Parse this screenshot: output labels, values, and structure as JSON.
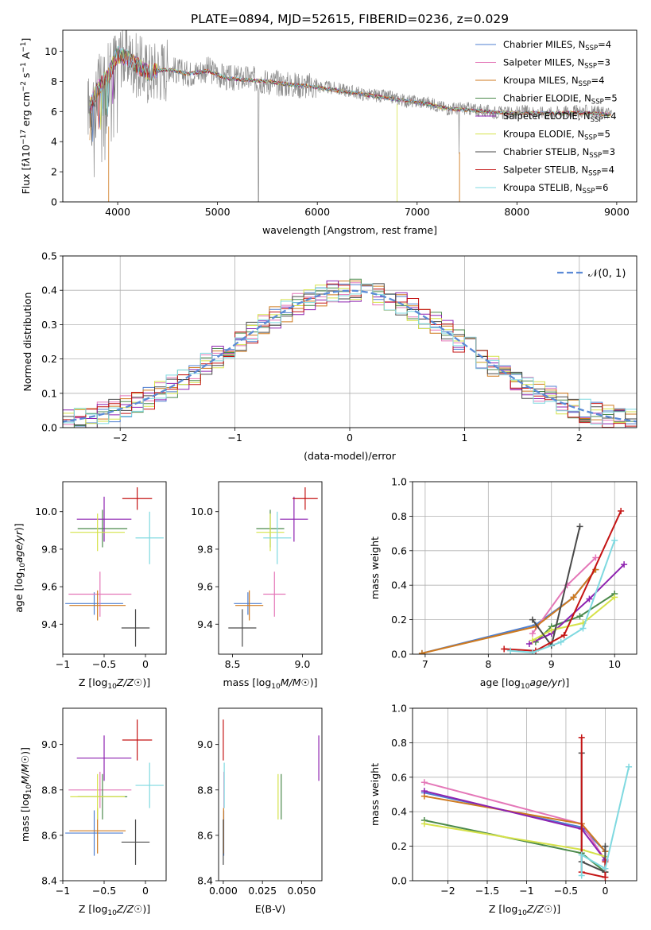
{
  "figure": {
    "title": "PLATE=0894, MJD=52615, FIBERID=0236, z=0.029"
  },
  "colors": {
    "Chabrier MILES": "#4f7fd0",
    "Salpeter MILES": "#e477b8",
    "Kroupa MILES": "#cf7a1f",
    "Chabrier ELODIE": "#4c8a4c",
    "Salpeter ELODIE": "#8e22b0",
    "Kroupa ELODIE": "#d6e24a",
    "Chabrier STELIB": "#4a4a4a",
    "Salpeter STELIB": "#c41414",
    "Kroupa STELIB": "#7fd9e0"
  },
  "chart_data": [
    {
      "id": "spectrum",
      "type": "line",
      "xlabel": "wavelength [Angstrom, rest frame]",
      "ylabel": "Flux [f_λ10^-17 erg cm^-2 s^-1 A^-1]",
      "xlim": [
        3450,
        9200
      ],
      "ylim": [
        0,
        11.4
      ],
      "xticks": [
        4000,
        5000,
        6000,
        7000,
        8000,
        9000
      ],
      "yticks": [
        0,
        2,
        4,
        6,
        8,
        10
      ],
      "legend_position": "top-right",
      "data_series": {
        "name": "",
        "x": [
          3700,
          3800,
          3900,
          4000,
          4100,
          4200,
          4300,
          4500,
          4700,
          4900,
          5100,
          5300,
          5500,
          5700,
          5900,
          6100,
          6300,
          6500,
          6700,
          6900,
          7100,
          7300,
          7500,
          7700,
          7900,
          8100,
          8300,
          8500,
          8700,
          8900
        ],
        "y": [
          6.3,
          7.6,
          8.5,
          9.9,
          9.6,
          9.0,
          8.6,
          8.9,
          8.5,
          8.8,
          8.2,
          8.2,
          8.0,
          7.8,
          7.7,
          7.6,
          7.4,
          7.1,
          7.0,
          6.7,
          6.6,
          6.2,
          6.2,
          6.0,
          5.9,
          6.0,
          5.9,
          6.0,
          6.0,
          5.9
        ]
      },
      "model_x": [
        3700,
        3800,
        3900,
        4000,
        4100,
        4200,
        4300,
        4500,
        4700,
        4900,
        5100,
        5300,
        5500,
        5700,
        5900,
        6100,
        6300,
        6500,
        6700,
        6900,
        7100,
        7300,
        7500,
        7700,
        7900,
        8100,
        8300,
        8500,
        8700,
        8900
      ],
      "model_y": [
        6.0,
        7.5,
        8.3,
        9.8,
        9.5,
        9.0,
        8.6,
        8.8,
        8.5,
        8.7,
        8.2,
        8.1,
        8.0,
        7.8,
        7.7,
        7.5,
        7.3,
        7.1,
        6.9,
        6.7,
        6.5,
        6.2,
        6.1,
        6.0,
        5.9,
        5.9,
        5.9,
        5.9,
        5.9,
        5.8
      ],
      "legend": [
        {
          "name": "Chabrier MILES",
          "label": "Chabrier MILES, N",
          "sub": "SSP",
          "tail": "=4"
        },
        {
          "name": "Salpeter MILES",
          "label": "Salpeter MILES, N",
          "sub": "SSP",
          "tail": "=3"
        },
        {
          "name": "Kroupa MILES",
          "label": "Kroupa MILES, N",
          "sub": "SSP",
          "tail": "=4"
        },
        {
          "name": "Chabrier ELODIE",
          "label": "Chabrier ELODIE, N",
          "sub": "SSP",
          "tail": "=5"
        },
        {
          "name": "Salpeter ELODIE",
          "label": "Salpeter ELODIE, N",
          "sub": "SSP",
          "tail": "=4"
        },
        {
          "name": "Kroupa ELODIE",
          "label": "Kroupa ELODIE, N",
          "sub": "SSP",
          "tail": "=5"
        },
        {
          "name": "Chabrier STELIB",
          "label": "Chabrier STELIB, N",
          "sub": "SSP",
          "tail": "=3"
        },
        {
          "name": "Salpeter STELIB",
          "label": "Salpeter STELIB, N",
          "sub": "SSP",
          "tail": "=4"
        },
        {
          "name": "Kroupa STELIB",
          "label": "Kroupa STELIB, N",
          "sub": "SSP",
          "tail": "=6"
        }
      ]
    },
    {
      "id": "residuals",
      "type": "line",
      "xlabel": "(data-model)/error",
      "ylabel": "Normed distribution",
      "xlim": [
        -2.5,
        2.5
      ],
      "ylim": [
        0,
        0.5
      ],
      "xticks": [
        -2,
        -1,
        0,
        1,
        2
      ],
      "yticks": [
        0.0,
        0.1,
        0.2,
        0.3,
        0.4,
        0.5
      ],
      "grid": true,
      "legend_position": "top-right",
      "gaussian_label": "𝒩(0, 1)",
      "bin_width": 0.1
    },
    {
      "id": "age_vs_Z",
      "type": "scatter",
      "xlabel": "Z [log10(Z/Z☉)]",
      "ylabel": "age  [log10(age/yr)]",
      "xlim": [
        -1.0,
        0.25
      ],
      "ylim": [
        9.24,
        10.16
      ],
      "xticks": [
        -1.0,
        -0.5,
        0.0
      ],
      "yticks": [
        9.4,
        9.6,
        9.8,
        10.0
      ],
      "points": [
        {
          "name": "Chabrier MILES",
          "x": -0.62,
          "y": 9.51,
          "xerr": 0.35,
          "yerr": 0.06
        },
        {
          "name": "Salpeter MILES",
          "x": -0.55,
          "y": 9.56,
          "xerr": 0.38,
          "yerr": 0.12
        },
        {
          "name": "Kroupa MILES",
          "x": -0.58,
          "y": 9.5,
          "xerr": 0.34,
          "yerr": 0.08
        },
        {
          "name": "Chabrier ELODIE",
          "x": -0.52,
          "y": 9.91,
          "xerr": 0.3,
          "yerr": 0.1
        },
        {
          "name": "Salpeter ELODIE",
          "x": -0.5,
          "y": 9.96,
          "xerr": 0.33,
          "yerr": 0.12
        },
        {
          "name": "Kroupa ELODIE",
          "x": -0.58,
          "y": 9.89,
          "xerr": 0.33,
          "yerr": 0.1
        },
        {
          "name": "Chabrier STELIB",
          "x": -0.12,
          "y": 9.38,
          "xerr": 0.17,
          "yerr": 0.1
        },
        {
          "name": "Salpeter STELIB",
          "x": -0.1,
          "y": 10.07,
          "xerr": 0.18,
          "yerr": 0.06
        },
        {
          "name": "Kroupa STELIB",
          "x": 0.05,
          "y": 9.86,
          "xerr": 0.17,
          "yerr": 0.14
        }
      ]
    },
    {
      "id": "age_vs_mass",
      "type": "scatter",
      "xlabel": "mass [log10(M/M☉)]",
      "ylabel": "",
      "xlim": [
        8.4,
        9.14
      ],
      "ylim": [
        9.24,
        10.16
      ],
      "xticks": [
        8.5,
        9.0
      ],
      "yticks": [
        9.4,
        9.6,
        9.8,
        10.0
      ],
      "points": [
        {
          "name": "Chabrier MILES",
          "x": 8.61,
          "y": 9.51,
          "xerr": 0.1,
          "yerr": 0.06
        },
        {
          "name": "Salpeter MILES",
          "x": 8.8,
          "y": 9.56,
          "xerr": 0.08,
          "yerr": 0.12
        },
        {
          "name": "Kroupa MILES",
          "x": 8.62,
          "y": 9.5,
          "xerr": 0.1,
          "yerr": 0.08
        },
        {
          "name": "Chabrier ELODIE",
          "x": 8.77,
          "y": 9.91,
          "xerr": 0.1,
          "yerr": 0.1
        },
        {
          "name": "Salpeter ELODIE",
          "x": 8.94,
          "y": 9.96,
          "xerr": 0.1,
          "yerr": 0.12
        },
        {
          "name": "Kroupa ELODIE",
          "x": 8.77,
          "y": 9.89,
          "xerr": 0.1,
          "yerr": 0.1
        },
        {
          "name": "Chabrier STELIB",
          "x": 8.57,
          "y": 9.38,
          "xerr": 0.1,
          "yerr": 0.1
        },
        {
          "name": "Salpeter STELIB",
          "x": 9.02,
          "y": 10.07,
          "xerr": 0.09,
          "yerr": 0.06
        },
        {
          "name": "Kroupa STELIB",
          "x": 8.82,
          "y": 9.86,
          "xerr": 0.1,
          "yerr": 0.14
        }
      ]
    },
    {
      "id": "weight_vs_age",
      "type": "line",
      "xlabel": "age  [log10(age/yr)]",
      "ylabel": "mass weight",
      "xlim": [
        6.8,
        10.35
      ],
      "ylim": [
        0,
        1.0
      ],
      "xticks": [
        7,
        8,
        9,
        10
      ],
      "yticks": [
        0.0,
        0.2,
        0.4,
        0.6,
        0.8,
        1.0
      ],
      "grid": true,
      "series": [
        {
          "name": "Chabrier MILES",
          "x": [
            6.95,
            8.75,
            9.35,
            9.7
          ],
          "y": [
            0.005,
            0.17,
            0.33,
            0.49
          ]
        },
        {
          "name": "Salpeter MILES",
          "x": [
            8.7,
            9.25,
            9.7
          ],
          "y": [
            0.12,
            0.4,
            0.56
          ]
        },
        {
          "name": "Kroupa MILES",
          "x": [
            6.95,
            8.75,
            9.35,
            9.7
          ],
          "y": [
            0.005,
            0.16,
            0.33,
            0.49
          ]
        },
        {
          "name": "Chabrier ELODIE",
          "x": [
            8.75,
            9.0,
            9.45,
            10.0
          ],
          "y": [
            0.07,
            0.16,
            0.22,
            0.35
          ]
        },
        {
          "name": "Salpeter ELODIE",
          "x": [
            8.65,
            9.0,
            9.6,
            10.15
          ],
          "y": [
            0.06,
            0.12,
            0.32,
            0.52
          ]
        },
        {
          "name": "Kroupa ELODIE",
          "x": [
            8.7,
            9.0,
            9.5,
            10.0
          ],
          "y": [
            0.08,
            0.14,
            0.18,
            0.33
          ]
        },
        {
          "name": "Chabrier STELIB",
          "x": [
            8.7,
            9.0,
            9.45
          ],
          "y": [
            0.2,
            0.05,
            0.74
          ]
        },
        {
          "name": "Salpeter STELIB",
          "x": [
            8.25,
            8.75,
            9.2,
            10.1
          ],
          "y": [
            0.03,
            0.02,
            0.11,
            0.83
          ]
        },
        {
          "name": "Kroupa STELIB",
          "x": [
            8.35,
            8.7,
            9.15,
            9.5,
            10.0
          ],
          "y": [
            0.02,
            0.01,
            0.07,
            0.15,
            0.66
          ]
        }
      ]
    },
    {
      "id": "mass_vs_Z",
      "type": "scatter",
      "xlabel": "Z [log10(Z/Z☉)]",
      "ylabel": "mass [log10(M/M☉)]",
      "xlim": [
        -1.0,
        0.25
      ],
      "ylim": [
        8.4,
        9.16
      ],
      "xticks": [
        -1.0,
        -0.5,
        0.0
      ],
      "yticks": [
        8.4,
        8.6,
        8.8,
        9.0
      ],
      "points": [
        {
          "name": "Chabrier MILES",
          "x": -0.62,
          "y": 8.61,
          "xerr": 0.35,
          "yerr": 0.1
        },
        {
          "name": "Salpeter MILES",
          "x": -0.55,
          "y": 8.8,
          "xerr": 0.38,
          "yerr": 0.08
        },
        {
          "name": "Kroupa MILES",
          "x": -0.58,
          "y": 8.62,
          "xerr": 0.34,
          "yerr": 0.1
        },
        {
          "name": "Chabrier ELODIE",
          "x": -0.52,
          "y": 8.77,
          "xerr": 0.3,
          "yerr": 0.1
        },
        {
          "name": "Salpeter ELODIE",
          "x": -0.5,
          "y": 8.94,
          "xerr": 0.33,
          "yerr": 0.1
        },
        {
          "name": "Kroupa ELODIE",
          "x": -0.58,
          "y": 8.77,
          "xerr": 0.33,
          "yerr": 0.1
        },
        {
          "name": "Chabrier STELIB",
          "x": -0.12,
          "y": 8.57,
          "xerr": 0.17,
          "yerr": 0.1
        },
        {
          "name": "Salpeter STELIB",
          "x": -0.1,
          "y": 9.02,
          "xerr": 0.18,
          "yerr": 0.09
        },
        {
          "name": "Kroupa STELIB",
          "x": 0.05,
          "y": 8.82,
          "xerr": 0.17,
          "yerr": 0.1
        }
      ]
    },
    {
      "id": "mass_vs_ebv",
      "type": "scatter",
      "xlabel": "E(B-V)",
      "ylabel": "",
      "xlim": [
        -0.003,
        0.063
      ],
      "ylim": [
        8.4,
        9.16
      ],
      "xticks": [
        0.0,
        0.025,
        0.05
      ],
      "yticks": [
        8.4,
        8.6,
        8.8,
        9.0
      ],
      "points": [
        {
          "name": "Chabrier MILES",
          "x": 0.0003,
          "y": 8.61,
          "xerr": 0.0,
          "yerr": 0.1
        },
        {
          "name": "Salpeter MILES",
          "x": 0.0004,
          "y": 8.8,
          "xerr": 0.0,
          "yerr": 0.08
        },
        {
          "name": "Kroupa MILES",
          "x": 0.0002,
          "y": 8.62,
          "xerr": 0.0,
          "yerr": 0.1
        },
        {
          "name": "Chabrier ELODIE",
          "x": 0.037,
          "y": 8.77,
          "xerr": 0.0,
          "yerr": 0.1
        },
        {
          "name": "Salpeter ELODIE",
          "x": 0.061,
          "y": 8.94,
          "xerr": 0.0,
          "yerr": 0.1
        },
        {
          "name": "Kroupa ELODIE",
          "x": 0.035,
          "y": 8.77,
          "xerr": 0.0,
          "yerr": 0.1
        },
        {
          "name": "Chabrier STELIB",
          "x": 0.0,
          "y": 8.57,
          "xerr": 0.0,
          "yerr": 0.1
        },
        {
          "name": "Salpeter STELIB",
          "x": 0.0,
          "y": 9.02,
          "xerr": 0.0,
          "yerr": 0.09
        },
        {
          "name": "Kroupa STELIB",
          "x": 0.0006,
          "y": 8.82,
          "xerr": 0.0,
          "yerr": 0.1
        }
      ]
    },
    {
      "id": "weight_vs_Z",
      "type": "line",
      "xlabel": "Z [log10(Z/Z☉)]",
      "ylabel": "mass weight",
      "xlim": [
        -2.45,
        0.4
      ],
      "ylim": [
        0,
        1.0
      ],
      "xticks": [
        -2.0,
        -1.5,
        -1.0,
        -0.5,
        0.0
      ],
      "yticks": [
        0.0,
        0.2,
        0.4,
        0.6,
        0.8,
        1.0
      ],
      "grid": true,
      "series": [
        {
          "name": "Chabrier MILES",
          "x": [
            -2.3,
            -0.3,
            0.0
          ],
          "y": [
            0.51,
            0.31,
            0.17
          ]
        },
        {
          "name": "Salpeter MILES",
          "x": [
            -2.3,
            -0.3,
            0.0
          ],
          "y": [
            0.57,
            0.33,
            0.12
          ]
        },
        {
          "name": "Kroupa MILES",
          "x": [
            -2.3,
            -0.3,
            0.0
          ],
          "y": [
            0.49,
            0.33,
            0.17
          ]
        },
        {
          "name": "Chabrier ELODIE",
          "x": [
            -2.3,
            -0.3,
            0.0
          ],
          "y": [
            0.35,
            0.16,
            0.05
          ]
        },
        {
          "name": "Salpeter ELODIE",
          "x": [
            -2.3,
            -0.3,
            0.0
          ],
          "y": [
            0.52,
            0.3,
            0.12
          ]
        },
        {
          "name": "Kroupa ELODIE",
          "x": [
            -2.3,
            -0.3,
            0.0
          ],
          "y": [
            0.33,
            0.18,
            0.14
          ]
        },
        {
          "name": "Chabrier STELIB",
          "x": [
            -0.3,
            -0.3,
            0.0,
            0.0
          ],
          "y": [
            0.74,
            0.11,
            0.05,
            0.2
          ]
        },
        {
          "name": "Salpeter STELIB",
          "x": [
            -0.3,
            -0.3,
            0.0,
            0.0
          ],
          "y": [
            0.83,
            0.05,
            0.02,
            0.11
          ]
        },
        {
          "name": "Kroupa STELIB",
          "x": [
            -0.3,
            -0.3,
            0.0,
            0.3
          ],
          "y": [
            0.03,
            0.15,
            0.07,
            0.66
          ]
        }
      ]
    }
  ]
}
